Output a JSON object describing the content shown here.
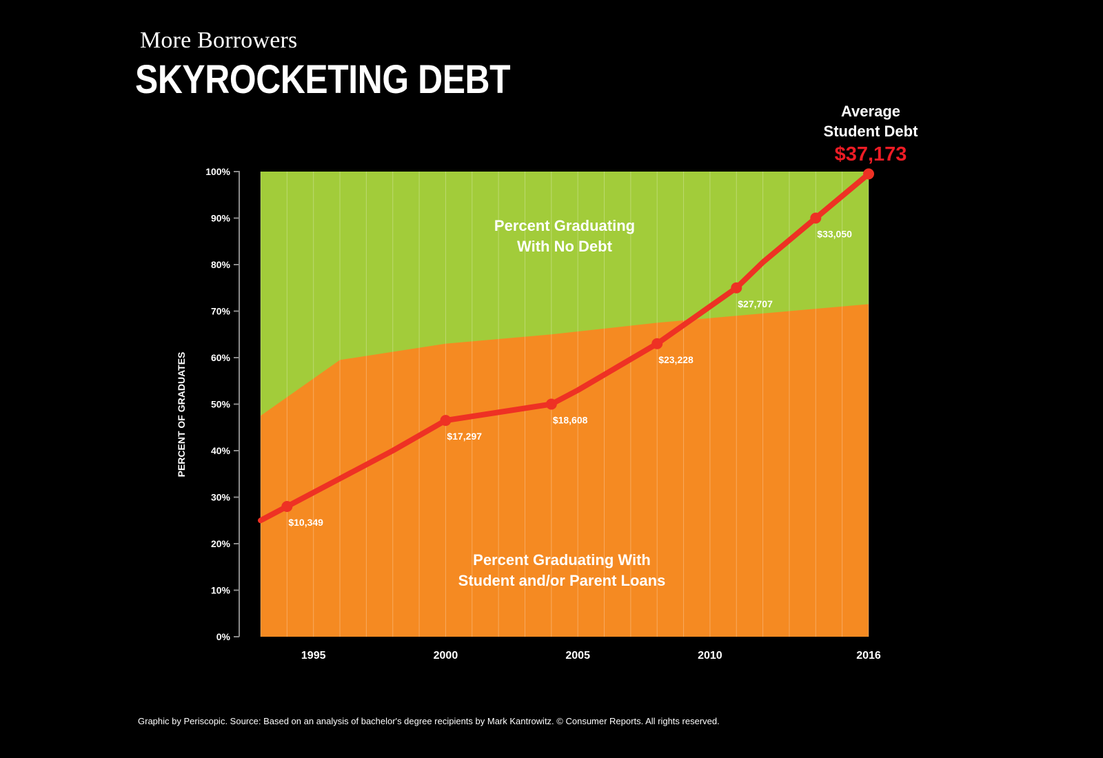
{
  "header": {
    "subtitle": "More Borrowers",
    "title": "SKYROCKETING DEBT"
  },
  "footer": {
    "credit": "Graphic by Periscopic. Source: Based on an analysis of bachelor's degree recipients by Mark Kantrowitz. © Consumer Reports. All rights reserved."
  },
  "colors": {
    "background": "#000000",
    "no_debt_area": "#a2cc3a",
    "loans_area": "#f58a22",
    "debt_line": "#ee3124",
    "highlight_text": "#ee1c25",
    "text": "#ffffff"
  },
  "chart_data": {
    "type": "area",
    "ylabel": "PERCENT OF GRADUATES",
    "ylim": [
      0,
      100
    ],
    "yticks": [
      "0%",
      "10%",
      "20%",
      "30%",
      "40%",
      "50%",
      "60%",
      "70%",
      "80%",
      "90%",
      "100%"
    ],
    "xlim": [
      1993,
      2016
    ],
    "xticks": [
      {
        "year": 1995,
        "label": "1995"
      },
      {
        "year": 2000,
        "label": "2000"
      },
      {
        "year": 2005,
        "label": "2005"
      },
      {
        "year": 2010,
        "label": "2010"
      },
      {
        "year": 2016,
        "label": "2016"
      }
    ],
    "area_series": {
      "name": "Percent Graduating With Student and/or Parent Loans",
      "x": [
        1993,
        1996,
        2000,
        2004,
        2008,
        2012,
        2016
      ],
      "values": [
        47.5,
        59.5,
        63,
        65,
        67.5,
        69.5,
        71.5
      ]
    },
    "area_labels": {
      "upper_line1": "Percent Graduating",
      "upper_line2": "With No Debt",
      "lower_line1": "Percent Graduating With",
      "lower_line2": "Student and/or Parent Loans"
    },
    "debt_series": {
      "name": "Average Student Debt",
      "line_x": [
        1993,
        1996,
        1998,
        2000,
        2004,
        2005,
        2008,
        2011,
        2012,
        2014,
        2016
      ],
      "line_y": [
        25,
        34,
        40,
        46.5,
        50,
        53,
        63,
        75,
        80.5,
        90,
        99.5
      ],
      "points": [
        {
          "year": 1994,
          "y": 28,
          "label": "$10,349"
        },
        {
          "year": 2000,
          "y": 46.5,
          "label": "$17,297"
        },
        {
          "year": 2004,
          "y": 50,
          "label": "$18,608"
        },
        {
          "year": 2008,
          "y": 63,
          "label": "$23,228"
        },
        {
          "year": 2011,
          "y": 75,
          "label": "$27,707"
        },
        {
          "year": 2014,
          "y": 90,
          "label": "$33,050"
        },
        {
          "year": 2016,
          "y": 99.5,
          "label": "$37,173"
        }
      ]
    },
    "callout": {
      "line1": "Average",
      "line2": "Student Debt",
      "value": "$37,173"
    }
  }
}
